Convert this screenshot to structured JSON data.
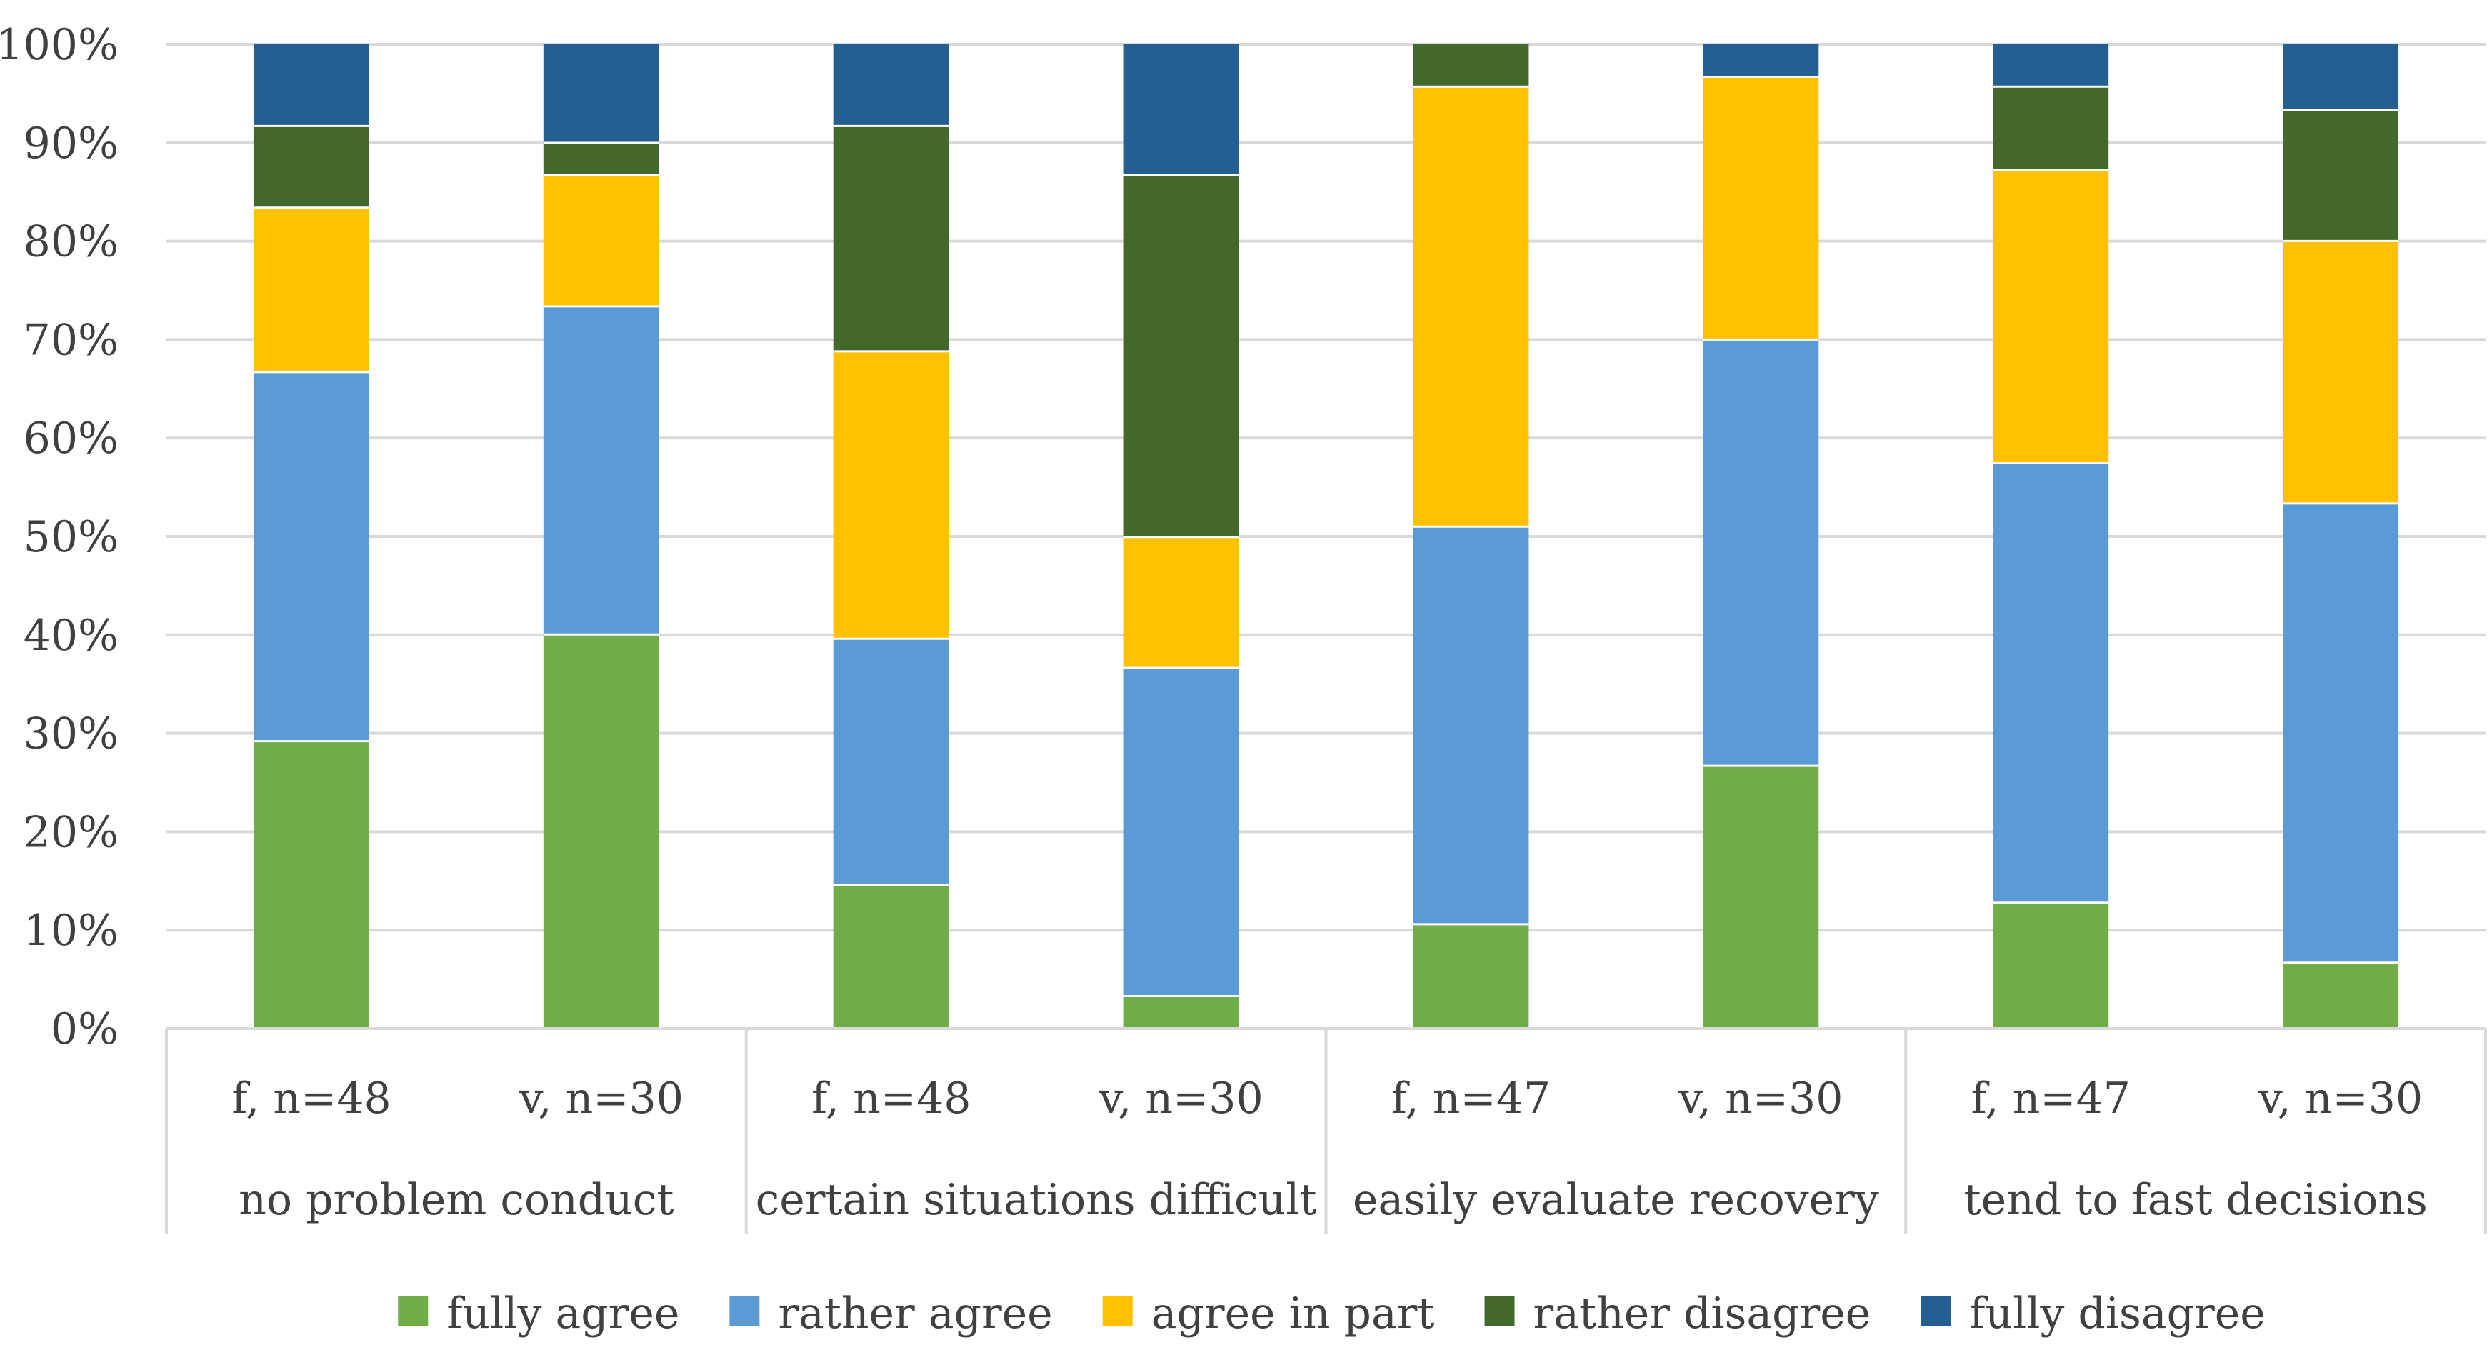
{
  "chart_data": {
    "type": "bar",
    "stacked": true,
    "percent": true,
    "ylim": [
      0,
      100
    ],
    "yticks": [
      "0%",
      "10%",
      "20%",
      "30%",
      "40%",
      "50%",
      "60%",
      "70%",
      "80%",
      "90%",
      "100%"
    ],
    "grid": true,
    "legend_position": "bottom",
    "categories": [
      "f, n=48",
      "v, n=30",
      "f, n=48",
      "v, n=30",
      "f, n=47",
      "v, n=30",
      "f, n=47",
      "v, n=30"
    ],
    "groups": [
      {
        "label": "no problem conduct",
        "span": 2
      },
      {
        "label": "certain situations difficult",
        "span": 2
      },
      {
        "label": "easily evaluate recovery",
        "span": 2
      },
      {
        "label": "tend to fast decisions",
        "span": 2
      }
    ],
    "series": [
      {
        "name": "fully agree",
        "color": "#70AD47",
        "values": [
          29.2,
          40.0,
          14.6,
          3.3,
          10.6,
          26.7,
          12.8,
          6.7
        ]
      },
      {
        "name": "rather agree",
        "color": "#5B9BD5",
        "values": [
          37.5,
          33.3,
          25.0,
          33.3,
          40.4,
          43.3,
          44.7,
          46.7
        ]
      },
      {
        "name": "agree in part",
        "color": "#FFC000",
        "values": [
          16.7,
          13.3,
          29.2,
          13.3,
          44.7,
          26.7,
          29.8,
          26.7
        ]
      },
      {
        "name": "rather disagree",
        "color": "#43682B",
        "values": [
          8.3,
          3.3,
          22.9,
          36.7,
          4.3,
          0.0,
          8.5,
          13.3
        ]
      },
      {
        "name": "fully disagree",
        "color": "#255E91",
        "values": [
          8.3,
          10.0,
          8.3,
          13.3,
          0.0,
          3.3,
          4.3,
          6.7
        ]
      }
    ]
  }
}
